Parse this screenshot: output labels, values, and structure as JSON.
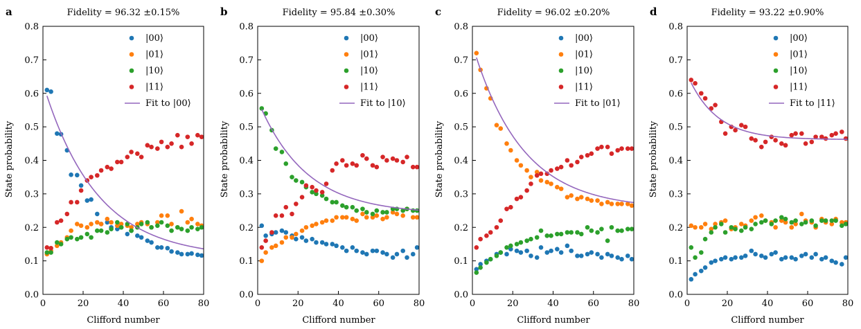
{
  "chart_data": [
    {
      "type": "scatter",
      "panel_label": "a",
      "title": "Fidelity = 96.32 ±0.15%",
      "xlabel": "Clifford number",
      "ylabel": "State probability",
      "xlim": [
        0,
        80
      ],
      "ylim": [
        0.0,
        0.8
      ],
      "xticks": [
        "0",
        "20",
        "40",
        "60",
        "80"
      ],
      "yticks": [
        "0.0",
        "0.1",
        "0.2",
        "0.3",
        "0.4",
        "0.5",
        "0.6",
        "0.7",
        "0.8"
      ],
      "legend_position": "top-right",
      "x": [
        2,
        4,
        7,
        9,
        12,
        14,
        17,
        19,
        22,
        24,
        27,
        29,
        32,
        34,
        37,
        39,
        42,
        44,
        47,
        49,
        52,
        54,
        57,
        59,
        62,
        64,
        67,
        69,
        72,
        74,
        77,
        79
      ],
      "series": [
        {
          "name": "|00⟩",
          "color": "#1f77b4",
          "values": [
            0.61,
            0.605,
            0.48,
            0.478,
            0.43,
            0.357,
            0.356,
            0.325,
            0.28,
            0.283,
            0.24,
            0.21,
            0.215,
            0.2,
            0.195,
            0.2,
            0.18,
            0.19,
            0.175,
            0.17,
            0.16,
            0.155,
            0.14,
            0.14,
            0.138,
            0.128,
            0.125,
            0.12,
            0.12,
            0.122,
            0.118,
            0.116
          ]
        },
        {
          "name": "|01⟩",
          "color": "#ff7f0e",
          "values": [
            0.12,
            0.13,
            0.145,
            0.155,
            0.17,
            0.19,
            0.21,
            0.205,
            0.2,
            0.21,
            0.215,
            0.21,
            0.225,
            0.215,
            0.205,
            0.21,
            0.205,
            0.2,
            0.21,
            0.215,
            0.21,
            0.2,
            0.215,
            0.235,
            0.235,
            0.21,
            0.2,
            0.248,
            0.215,
            0.225,
            0.21,
            0.205
          ]
        },
        {
          "name": "|10⟩",
          "color": "#2ca02c",
          "values": [
            0.125,
            0.125,
            0.155,
            0.15,
            0.165,
            0.17,
            0.165,
            0.17,
            0.18,
            0.17,
            0.19,
            0.19,
            0.185,
            0.195,
            0.215,
            0.2,
            0.21,
            0.19,
            0.2,
            0.21,
            0.215,
            0.2,
            0.205,
            0.215,
            0.205,
            0.19,
            0.2,
            0.195,
            0.19,
            0.2,
            0.195,
            0.2
          ]
        },
        {
          "name": "|11⟩",
          "color": "#d62728",
          "values": [
            0.14,
            0.138,
            0.215,
            0.22,
            0.24,
            0.275,
            0.275,
            0.31,
            0.34,
            0.35,
            0.355,
            0.37,
            0.38,
            0.375,
            0.395,
            0.395,
            0.41,
            0.425,
            0.42,
            0.41,
            0.445,
            0.44,
            0.435,
            0.455,
            0.44,
            0.45,
            0.475,
            0.44,
            0.47,
            0.45,
            0.475,
            0.47
          ]
        }
      ],
      "fit": {
        "name": "Fit to |00⟩",
        "color": "#9467bd",
        "A": 0.52,
        "decay": 0.9632,
        "B": 0.11
      }
    },
    {
      "type": "scatter",
      "panel_label": "b",
      "title": "Fidelity = 95.84 ±0.30%",
      "xlabel": "Clifford number",
      "ylabel": "State probability",
      "xlim": [
        0,
        80
      ],
      "ylim": [
        0.0,
        0.8
      ],
      "xticks": [
        "0",
        "20",
        "40",
        "60",
        "80"
      ],
      "yticks": [
        "0.0",
        "0.1",
        "0.2",
        "0.3",
        "0.4",
        "0.5",
        "0.6",
        "0.7",
        "0.8"
      ],
      "legend_position": "top-right",
      "x": [
        2,
        4,
        7,
        9,
        12,
        14,
        17,
        19,
        22,
        24,
        27,
        29,
        32,
        34,
        37,
        39,
        42,
        44,
        47,
        49,
        52,
        54,
        57,
        59,
        62,
        64,
        67,
        69,
        72,
        74,
        77,
        79
      ],
      "series": [
        {
          "name": "|00⟩",
          "color": "#1f77b4",
          "values": [
            0.205,
            0.175,
            0.18,
            0.185,
            0.19,
            0.185,
            0.175,
            0.165,
            0.17,
            0.16,
            0.165,
            0.155,
            0.155,
            0.15,
            0.15,
            0.145,
            0.14,
            0.13,
            0.14,
            0.13,
            0.125,
            0.12,
            0.13,
            0.13,
            0.125,
            0.12,
            0.11,
            0.12,
            0.13,
            0.11,
            0.12,
            0.14
          ]
        },
        {
          "name": "|01⟩",
          "color": "#ff7f0e",
          "values": [
            0.1,
            0.125,
            0.14,
            0.145,
            0.155,
            0.17,
            0.17,
            0.18,
            0.19,
            0.2,
            0.205,
            0.21,
            0.215,
            0.22,
            0.22,
            0.23,
            0.23,
            0.23,
            0.225,
            0.22,
            0.24,
            0.23,
            0.23,
            0.235,
            0.225,
            0.23,
            0.245,
            0.24,
            0.235,
            0.255,
            0.23,
            0.23
          ]
        },
        {
          "name": "|10⟩",
          "color": "#2ca02c",
          "values": [
            0.555,
            0.54,
            0.49,
            0.435,
            0.425,
            0.39,
            0.35,
            0.34,
            0.335,
            0.32,
            0.305,
            0.3,
            0.295,
            0.285,
            0.275,
            0.275,
            0.265,
            0.26,
            0.26,
            0.25,
            0.255,
            0.245,
            0.24,
            0.25,
            0.245,
            0.245,
            0.255,
            0.255,
            0.25,
            0.255,
            0.25,
            0.25
          ]
        },
        {
          "name": "|11⟩",
          "color": "#d62728",
          "values": [
            0.14,
            0.16,
            0.185,
            0.235,
            0.235,
            0.26,
            0.24,
            0.27,
            0.29,
            0.325,
            0.32,
            0.31,
            0.305,
            0.33,
            0.37,
            0.39,
            0.4,
            0.385,
            0.39,
            0.385,
            0.415,
            0.405,
            0.385,
            0.38,
            0.41,
            0.4,
            0.405,
            0.4,
            0.395,
            0.41,
            0.38,
            0.38
          ]
        }
      ],
      "fit": {
        "name": "Fit to |10⟩",
        "color": "#9467bd",
        "A": 0.34,
        "decay": 0.9584,
        "B": 0.24
      }
    },
    {
      "type": "scatter",
      "panel_label": "c",
      "title": "Fidelity = 96.02 ±0.20%",
      "xlabel": "Clifford number",
      "ylabel": "State probability",
      "xlim": [
        0,
        80
      ],
      "ylim": [
        0.0,
        0.8
      ],
      "xticks": [
        "0",
        "20",
        "40",
        "60",
        "80"
      ],
      "yticks": [
        "0.0",
        "0.1",
        "0.2",
        "0.3",
        "0.4",
        "0.5",
        "0.6",
        "0.7",
        "0.8"
      ],
      "legend_position": "top-right",
      "x": [
        2,
        4,
        7,
        9,
        12,
        14,
        17,
        19,
        22,
        24,
        27,
        29,
        32,
        34,
        37,
        39,
        42,
        44,
        47,
        49,
        52,
        54,
        57,
        59,
        62,
        64,
        67,
        69,
        72,
        74,
        77,
        79
      ],
      "series": [
        {
          "name": "|00⟩",
          "color": "#1f77b4",
          "values": [
            0.075,
            0.09,
            0.1,
            0.105,
            0.12,
            0.125,
            0.12,
            0.135,
            0.13,
            0.125,
            0.13,
            0.115,
            0.11,
            0.14,
            0.125,
            0.13,
            0.135,
            0.125,
            0.145,
            0.13,
            0.115,
            0.115,
            0.12,
            0.125,
            0.12,
            0.11,
            0.12,
            0.115,
            0.11,
            0.105,
            0.115,
            0.105
          ]
        },
        {
          "name": "|01⟩",
          "color": "#ff7f0e",
          "values": [
            0.72,
            0.67,
            0.615,
            0.585,
            0.505,
            0.495,
            0.45,
            0.43,
            0.4,
            0.385,
            0.37,
            0.35,
            0.365,
            0.34,
            0.335,
            0.33,
            0.32,
            0.315,
            0.29,
            0.295,
            0.285,
            0.29,
            0.285,
            0.28,
            0.28,
            0.27,
            0.275,
            0.27,
            0.27,
            0.27,
            0.27,
            0.265
          ]
        },
        {
          "name": "|10⟩",
          "color": "#2ca02c",
          "values": [
            0.065,
            0.08,
            0.095,
            0.105,
            0.115,
            0.125,
            0.14,
            0.145,
            0.15,
            0.155,
            0.16,
            0.165,
            0.17,
            0.19,
            0.175,
            0.175,
            0.18,
            0.18,
            0.185,
            0.185,
            0.185,
            0.18,
            0.2,
            0.19,
            0.185,
            0.195,
            0.16,
            0.2,
            0.19,
            0.19,
            0.195,
            0.195
          ]
        },
        {
          "name": "|11⟩",
          "color": "#d62728",
          "values": [
            0.14,
            0.165,
            0.175,
            0.185,
            0.2,
            0.22,
            0.255,
            0.26,
            0.285,
            0.29,
            0.31,
            0.33,
            0.355,
            0.36,
            0.36,
            0.37,
            0.375,
            0.38,
            0.4,
            0.385,
            0.395,
            0.41,
            0.415,
            0.42,
            0.435,
            0.44,
            0.44,
            0.42,
            0.43,
            0.435,
            0.435,
            0.435
          ]
        }
      ],
      "fit": {
        "name": "Fit to |01⟩",
        "color": "#9467bd",
        "A": 0.49,
        "decay": 0.9602,
        "B": 0.255
      }
    },
    {
      "type": "scatter",
      "panel_label": "d",
      "title": "Fidelity = 93.22 ±0.90%",
      "xlabel": "Clifford number",
      "ylabel": "State probability",
      "xlim": [
        0,
        80
      ],
      "ylim": [
        0.0,
        0.8
      ],
      "xticks": [
        "0",
        "20",
        "40",
        "60",
        "80"
      ],
      "yticks": [
        "0.0",
        "0.1",
        "0.2",
        "0.3",
        "0.4",
        "0.5",
        "0.6",
        "0.7",
        "0.8"
      ],
      "legend_position": "top-right",
      "x": [
        2,
        4,
        7,
        9,
        12,
        14,
        17,
        19,
        22,
        24,
        27,
        29,
        32,
        34,
        37,
        39,
        42,
        44,
        47,
        49,
        52,
        54,
        57,
        59,
        62,
        64,
        67,
        69,
        72,
        74,
        77,
        79
      ],
      "series": [
        {
          "name": "|00⟩",
          "color": "#1f77b4",
          "values": [
            0.045,
            0.06,
            0.07,
            0.08,
            0.095,
            0.1,
            0.105,
            0.11,
            0.105,
            0.11,
            0.11,
            0.115,
            0.13,
            0.12,
            0.115,
            0.11,
            0.12,
            0.125,
            0.105,
            0.11,
            0.11,
            0.105,
            0.115,
            0.12,
            0.11,
            0.12,
            0.105,
            0.11,
            0.1,
            0.095,
            0.09,
            0.11
          ]
        },
        {
          "name": "|01⟩",
          "color": "#ff7f0e",
          "values": [
            0.205,
            0.2,
            0.2,
            0.21,
            0.195,
            0.21,
            0.215,
            0.22,
            0.195,
            0.2,
            0.21,
            0.205,
            0.22,
            0.23,
            0.235,
            0.22,
            0.215,
            0.2,
            0.22,
            0.215,
            0.2,
            0.21,
            0.24,
            0.22,
            0.215,
            0.2,
            0.225,
            0.215,
            0.21,
            0.225,
            0.215,
            0.215
          ]
        },
        {
          "name": "|10⟩",
          "color": "#2ca02c",
          "values": [
            0.14,
            0.11,
            0.125,
            0.165,
            0.185,
            0.2,
            0.21,
            0.185,
            0.2,
            0.195,
            0.19,
            0.2,
            0.195,
            0.21,
            0.215,
            0.22,
            0.21,
            0.22,
            0.23,
            0.225,
            0.215,
            0.22,
            0.21,
            0.215,
            0.22,
            0.205,
            0.22,
            0.22,
            0.22,
            0.22,
            0.205,
            0.21
          ]
        },
        {
          "name": "|11⟩",
          "color": "#d62728",
          "values": [
            0.64,
            0.63,
            0.6,
            0.585,
            0.555,
            0.565,
            0.515,
            0.48,
            0.5,
            0.49,
            0.505,
            0.5,
            0.465,
            0.46,
            0.44,
            0.455,
            0.47,
            0.46,
            0.45,
            0.445,
            0.475,
            0.48,
            0.48,
            0.45,
            0.455,
            0.47,
            0.47,
            0.465,
            0.475,
            0.48,
            0.485,
            0.465
          ]
        }
      ],
      "fit": {
        "name": "Fit to |11⟩",
        "color": "#9467bd",
        "A": 0.195,
        "decay": 0.9322,
        "B": 0.462
      }
    }
  ]
}
